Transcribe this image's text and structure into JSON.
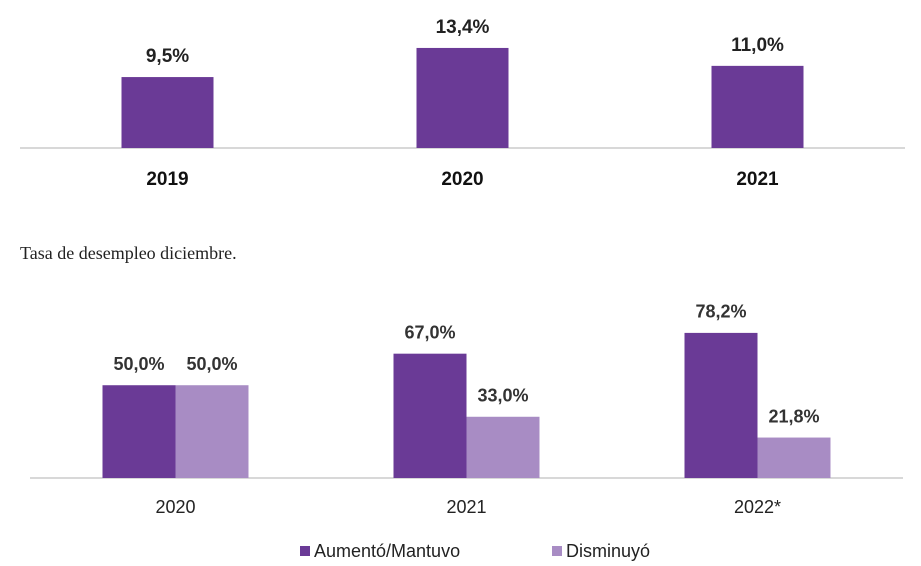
{
  "chart_data": [
    {
      "type": "bar",
      "categories": [
        "2019",
        "2020",
        "2021"
      ],
      "values": [
        9.5,
        13.4,
        11.0
      ],
      "value_labels": [
        "9,5%",
        "13,4%",
        "11,0%"
      ],
      "color": "#6a3a96",
      "ylim": [
        0,
        15
      ],
      "caption": "Tasa de desempleo diciembre."
    },
    {
      "type": "grouped_bar",
      "categories": [
        "2020",
        "2021",
        "2022*"
      ],
      "ylim": [
        0,
        90
      ],
      "series": [
        {
          "name": "Aumentó/Mantuvo",
          "color": "#6a3a96",
          "values": [
            50.0,
            67.0,
            78.2
          ],
          "value_labels": [
            "50,0%",
            "67,0%",
            "78,2%"
          ]
        },
        {
          "name": "Disminuyó",
          "color": "#a88cc4",
          "values": [
            50.0,
            33.0,
            21.8
          ],
          "value_labels": [
            "50,0%",
            "33,0%",
            "21,8%"
          ]
        }
      ]
    }
  ]
}
